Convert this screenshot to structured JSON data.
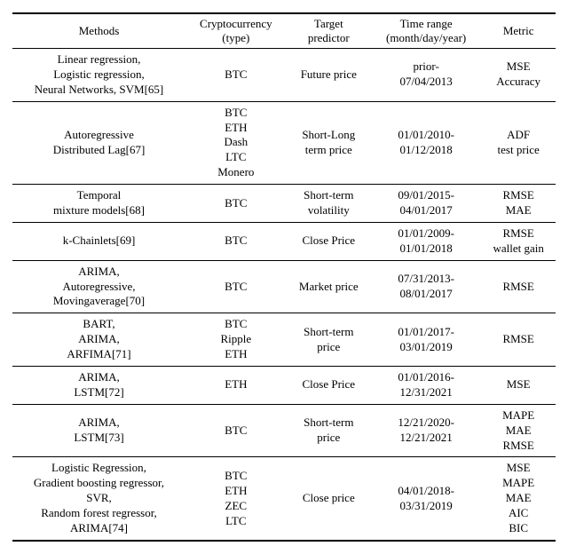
{
  "table": {
    "columns": [
      [
        "Methods"
      ],
      [
        "Cryptocurrency",
        "(type)"
      ],
      [
        "Target",
        "predictor"
      ],
      [
        "Time range",
        "(month/day/year)"
      ],
      [
        "Metric"
      ]
    ],
    "rows": [
      {
        "methods": [
          "Linear regression,",
          "Logistic regression,",
          "Neural Networks, SVM[65]"
        ],
        "crypto": [
          "BTC"
        ],
        "target": [
          "Future price"
        ],
        "time": [
          "prior-",
          "07/04/2013"
        ],
        "metric": [
          "MSE",
          "Accuracy"
        ]
      },
      {
        "methods": [
          "Autoregressive",
          "Distributed Lag[67]"
        ],
        "crypto": [
          "BTC",
          "ETH",
          "Dash",
          "LTC",
          "Monero"
        ],
        "target": [
          "Short-Long",
          "term price"
        ],
        "time": [
          "01/01/2010-",
          "01/12/2018"
        ],
        "metric": [
          "ADF",
          "test price"
        ]
      },
      {
        "methods": [
          "Temporal",
          "mixture models[68]"
        ],
        "crypto": [
          "BTC"
        ],
        "target": [
          "Short-term",
          "volatility"
        ],
        "time": [
          "09/01/2015-",
          "04/01/2017"
        ],
        "metric": [
          "RMSE",
          "MAE"
        ]
      },
      {
        "methods": [
          "k-Chainlets[69]"
        ],
        "crypto": [
          "BTC"
        ],
        "target": [
          "Close Price"
        ],
        "time": [
          "01/01/2009-",
          "01/01/2018"
        ],
        "metric": [
          "RMSE",
          "wallet gain"
        ]
      },
      {
        "methods": [
          "ARIMA,",
          "Autoregressive,",
          "Movingaverage[70]"
        ],
        "crypto": [
          "BTC"
        ],
        "target": [
          "Market price"
        ],
        "time": [
          "07/31/2013-",
          "08/01/2017"
        ],
        "metric": [
          "RMSE"
        ]
      },
      {
        "methods": [
          "BART,",
          "ARIMA,",
          "ARFIMA[71]"
        ],
        "crypto": [
          "BTC",
          "Ripple",
          "ETH"
        ],
        "target": [
          "Short-term",
          "price"
        ],
        "time": [
          "01/01/2017-",
          "03/01/2019"
        ],
        "metric": [
          "RMSE"
        ]
      },
      {
        "methods": [
          "ARIMA,",
          "LSTM[72]"
        ],
        "crypto": [
          "ETH"
        ],
        "target": [
          "Close Price"
        ],
        "time": [
          "01/01/2016-",
          "12/31/2021"
        ],
        "metric": [
          "MSE"
        ]
      },
      {
        "methods": [
          "ARIMA,",
          "LSTM[73]"
        ],
        "crypto": [
          "BTC"
        ],
        "target": [
          "Short-term",
          "price"
        ],
        "time": [
          "12/21/2020-",
          "12/21/2021"
        ],
        "metric": [
          "MAPE",
          "MAE",
          "RMSE"
        ]
      },
      {
        "methods": [
          "Logistic Regression,",
          "Gradient boosting regressor,",
          "SVR,",
          "Random forest regressor,",
          "ARIMA[74]"
        ],
        "crypto": [
          "BTC",
          "ETH",
          "ZEC",
          "LTC"
        ],
        "target": [
          "Close price"
        ],
        "time": [
          "04/01/2018-",
          "03/31/2019"
        ],
        "metric": [
          "MSE",
          "MAPE",
          "MAE",
          "AIC",
          "BIC"
        ]
      }
    ]
  }
}
